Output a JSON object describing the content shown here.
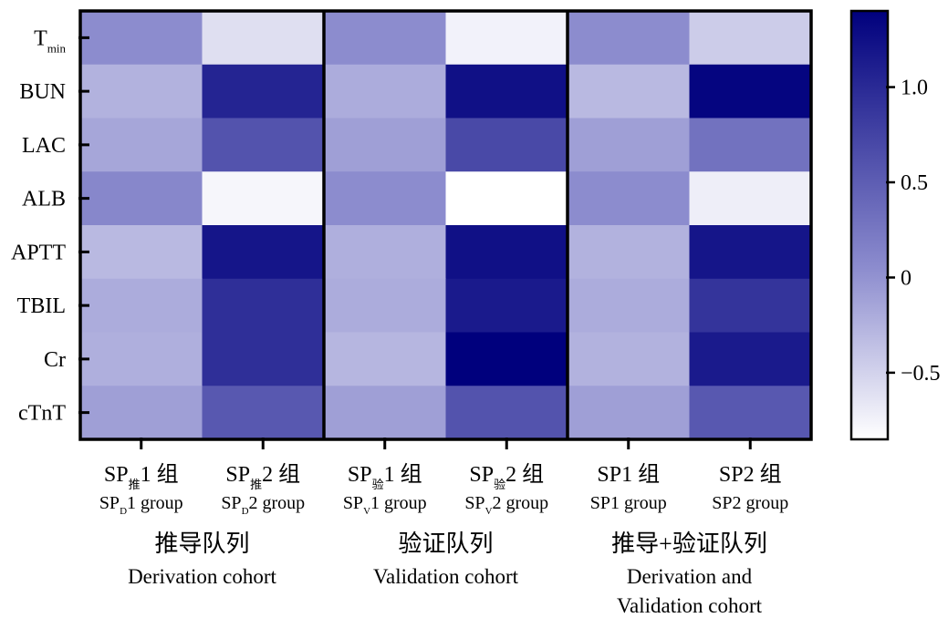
{
  "chart_data": {
    "type": "heatmap",
    "rows": [
      "T",
      "BUN",
      "LAC",
      "ALB",
      "APTT",
      "TBIL",
      "Cr",
      "cTnT"
    ],
    "row_subscripts": [
      "min",
      "",
      "",
      "",
      "",
      "",
      "",
      ""
    ],
    "columns": [
      {
        "main": "SP",
        "main_sub": "推",
        "main_tail": "1 组",
        "en": "SP",
        "en_sub": "D",
        "en_tail": "1 group"
      },
      {
        "main": "SP",
        "main_sub": "推",
        "main_tail": "2 组",
        "en": "SP",
        "en_sub": "D",
        "en_tail": "2 group"
      },
      {
        "main": "SP",
        "main_sub": "验",
        "main_tail": "1 组",
        "en": "SP",
        "en_sub": "V",
        "en_tail": "1 group"
      },
      {
        "main": "SP",
        "main_sub": "验",
        "main_tail": "2 组",
        "en": "SP",
        "en_sub": "V",
        "en_tail": "2 group"
      },
      {
        "main": "SP1 组",
        "main_sub": "",
        "main_tail": "",
        "en": "SP1 group",
        "en_sub": "",
        "en_tail": ""
      },
      {
        "main": "SP2 组",
        "main_sub": "",
        "main_tail": "",
        "en": "SP2 group",
        "en_sub": "",
        "en_tail": ""
      }
    ],
    "groups": [
      {
        "zh": "推导队列",
        "en": [
          "Derivation cohort"
        ]
      },
      {
        "zh": "验证队列",
        "en": [
          "Validation cohort"
        ]
      },
      {
        "zh": "推导+验证队列",
        "en": [
          "Derivation and",
          "Validation cohort"
        ]
      }
    ],
    "values": [
      [
        0.05,
        -0.6,
        0.05,
        -0.75,
        0.05,
        -0.45
      ],
      [
        -0.25,
        1.05,
        -0.2,
        1.25,
        -0.3,
        1.35
      ],
      [
        -0.15,
        0.6,
        -0.1,
        0.7,
        -0.1,
        0.3
      ],
      [
        0.1,
        -0.78,
        0.05,
        -0.85,
        0.05,
        -0.72
      ],
      [
        -0.3,
        1.2,
        -0.22,
        1.25,
        -0.25,
        1.2
      ],
      [
        -0.2,
        0.95,
        -0.2,
        1.15,
        -0.2,
        0.9
      ],
      [
        -0.22,
        0.95,
        -0.28,
        1.4,
        -0.25,
        1.15
      ],
      [
        -0.1,
        0.55,
        -0.1,
        0.6,
        -0.1,
        0.55
      ]
    ],
    "colorbar": {
      "vmin": -0.85,
      "vmax": 1.4,
      "ticks": [
        1.0,
        0.5,
        0,
        -0.5
      ],
      "tick_labels": [
        "1.0",
        "0.5",
        "0",
        "−0.5"
      ],
      "colors": [
        "#ffffff",
        "#8c8cce",
        "#00007d"
      ]
    },
    "separator_after_columns": [
      2,
      4
    ]
  }
}
